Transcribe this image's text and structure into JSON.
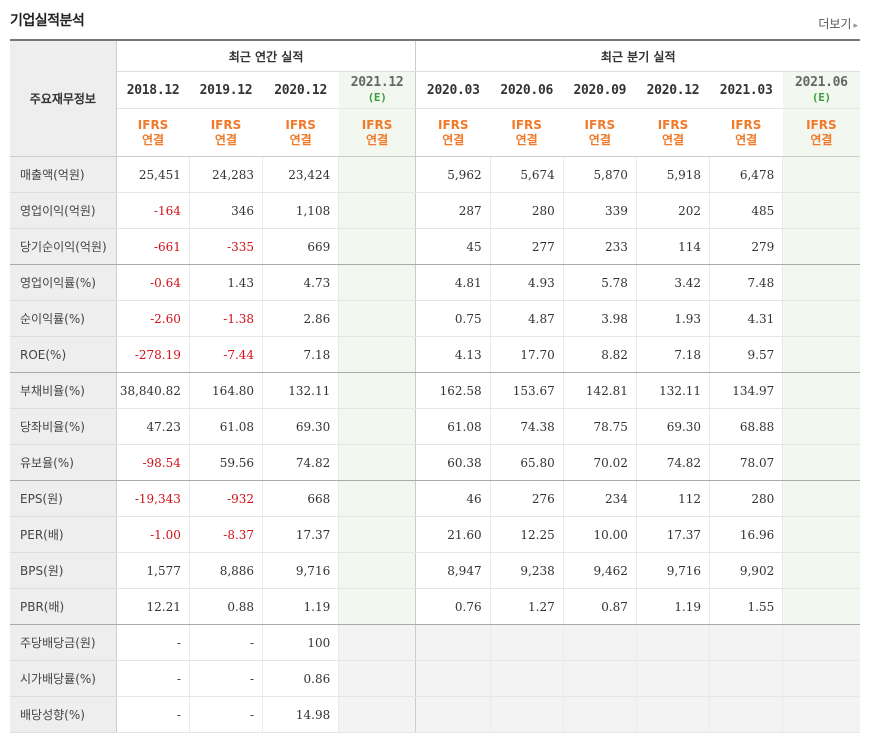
{
  "title": "기업실적분석",
  "more_label": "더보기",
  "header": {
    "row_label": "주요재무정보",
    "annual_group": "최근 연간 실적",
    "quarter_group": "최근 분기 실적",
    "ifrs_top": "IFRS",
    "ifrs_bottom": "연결",
    "est_mark": "(E)",
    "annual_periods": [
      "2018.12",
      "2019.12",
      "2020.12",
      "2021.12"
    ],
    "quarter_periods": [
      "2020.03",
      "2020.06",
      "2020.09",
      "2020.12",
      "2021.03",
      "2021.06"
    ]
  },
  "rows": [
    {
      "label": "매출액(억원)",
      "annual": [
        "25,451",
        "24,283",
        "23,424",
        ""
      ],
      "quarter": [
        "5,962",
        "5,674",
        "5,870",
        "5,918",
        "6,478",
        ""
      ]
    },
    {
      "label": "영업이익(억원)",
      "annual": [
        "-164",
        "346",
        "1,108",
        ""
      ],
      "quarter": [
        "287",
        "280",
        "339",
        "202",
        "485",
        ""
      ]
    },
    {
      "label": "당기순이익(억원)",
      "annual": [
        "-661",
        "-335",
        "669",
        ""
      ],
      "quarter": [
        "45",
        "277",
        "233",
        "114",
        "279",
        ""
      ]
    },
    {
      "label": "영업이익률(%)",
      "annual": [
        "-0.64",
        "1.43",
        "4.73",
        ""
      ],
      "quarter": [
        "4.81",
        "4.93",
        "5.78",
        "3.42",
        "7.48",
        ""
      ]
    },
    {
      "label": "순이익률(%)",
      "annual": [
        "-2.60",
        "-1.38",
        "2.86",
        ""
      ],
      "quarter": [
        "0.75",
        "4.87",
        "3.98",
        "1.93",
        "4.31",
        ""
      ]
    },
    {
      "label": "ROE(%)",
      "annual": [
        "-278.19",
        "-7.44",
        "7.18",
        ""
      ],
      "quarter": [
        "4.13",
        "17.70",
        "8.82",
        "7.18",
        "9.57",
        ""
      ]
    },
    {
      "label": "부채비율(%)",
      "annual": [
        "38,840.82",
        "164.80",
        "132.11",
        ""
      ],
      "quarter": [
        "162.58",
        "153.67",
        "142.81",
        "132.11",
        "134.97",
        ""
      ]
    },
    {
      "label": "당좌비율(%)",
      "annual": [
        "47.23",
        "61.08",
        "69.30",
        ""
      ],
      "quarter": [
        "61.08",
        "74.38",
        "78.75",
        "69.30",
        "68.88",
        ""
      ]
    },
    {
      "label": "유보율(%)",
      "annual": [
        "-98.54",
        "59.56",
        "74.82",
        ""
      ],
      "quarter": [
        "60.38",
        "65.80",
        "70.02",
        "74.82",
        "78.07",
        ""
      ]
    },
    {
      "label": "EPS(원)",
      "annual": [
        "-19,343",
        "-932",
        "668",
        ""
      ],
      "quarter": [
        "46",
        "276",
        "234",
        "112",
        "280",
        ""
      ]
    },
    {
      "label": "PER(배)",
      "annual": [
        "-1.00",
        "-8.37",
        "17.37",
        ""
      ],
      "quarter": [
        "21.60",
        "12.25",
        "10.00",
        "17.37",
        "16.96",
        ""
      ]
    },
    {
      "label": "BPS(원)",
      "annual": [
        "1,577",
        "8,886",
        "9,716",
        ""
      ],
      "quarter": [
        "8,947",
        "9,238",
        "9,462",
        "9,716",
        "9,902",
        ""
      ]
    },
    {
      "label": "PBR(배)",
      "annual": [
        "12.21",
        "0.88",
        "1.19",
        ""
      ],
      "quarter": [
        "0.76",
        "1.27",
        "0.87",
        "1.19",
        "1.55",
        ""
      ]
    },
    {
      "label": "주당배당금(원)",
      "annual": [
        "-",
        "-",
        "100",
        ""
      ],
      "quarter": [
        "",
        "",
        "",
        "",
        "",
        ""
      ]
    },
    {
      "label": "시가배당률(%)",
      "annual": [
        "-",
        "-",
        "0.86",
        ""
      ],
      "quarter": [
        "",
        "",
        "",
        "",
        "",
        ""
      ]
    },
    {
      "label": "배당성향(%)",
      "annual": [
        "-",
        "-",
        "14.98",
        ""
      ],
      "quarter": [
        "",
        "",
        "",
        "",
        "",
        ""
      ]
    }
  ],
  "colors": {
    "negative": "#d0121a",
    "ifrs": "#f07a2a",
    "estimate": "#3a9d3a",
    "estimate_bg": "#f2f7f0",
    "label_bg": "#eeeeee"
  }
}
